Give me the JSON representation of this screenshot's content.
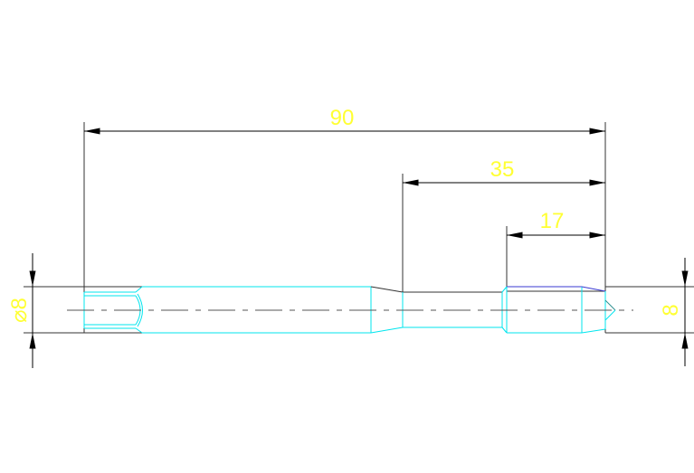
{
  "drawing": {
    "dimensions": {
      "overall_length": "90",
      "step_length": "35",
      "head_length": "17",
      "left_diameter": "⌀8",
      "right_diameter": "8"
    },
    "colors": {
      "part": "#00e5ee",
      "dimension_text": "#ffff33",
      "dimension_lines": "#000000",
      "background": "#ffffff"
    }
  }
}
